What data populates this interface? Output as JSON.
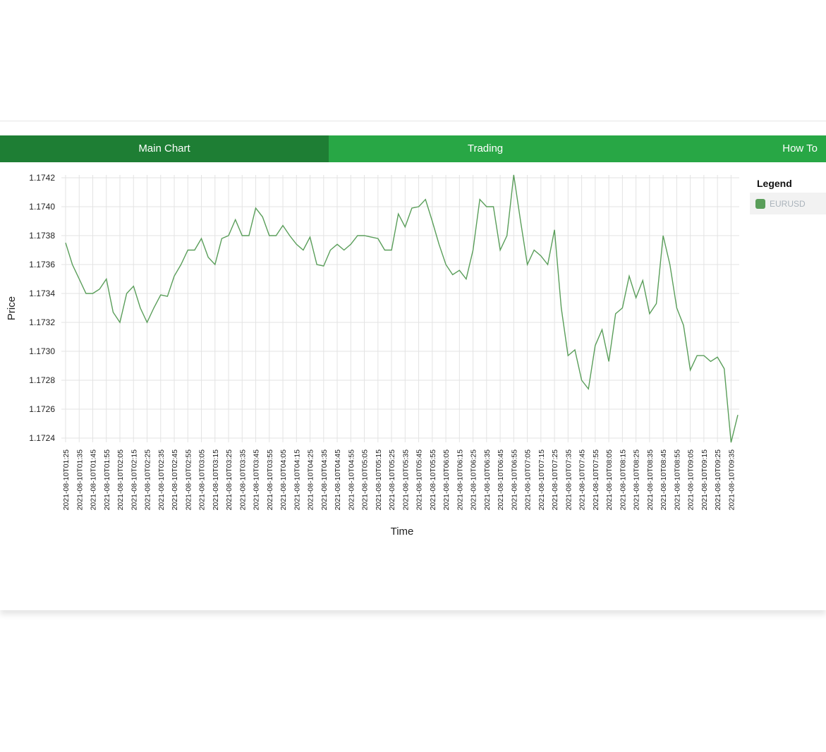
{
  "tabs": [
    {
      "label": "Main Chart",
      "active": true
    },
    {
      "label": "Trading",
      "active": false
    },
    {
      "label": "How To",
      "active": false
    }
  ],
  "legend": {
    "title": "Legend",
    "items": [
      {
        "name": "EURUSD",
        "color": "#5a9e5a"
      }
    ]
  },
  "chart_data": {
    "type": "line",
    "xlabel": "Time",
    "ylabel": "Price",
    "ylim": [
      1.1724,
      1.1742
    ],
    "yticks": [
      "1.1724",
      "1.1726",
      "1.1728",
      "1.1730",
      "1.1732",
      "1.1734",
      "1.1736",
      "1.1738",
      "1.1740",
      "1.1742"
    ],
    "grid": true,
    "legend_position": "right",
    "x": [
      "2021-08-10T01:25",
      "2021-08-10T01:30",
      "2021-08-10T01:35",
      "2021-08-10T01:40",
      "2021-08-10T01:45",
      "2021-08-10T01:50",
      "2021-08-10T01:55",
      "2021-08-10T02:00",
      "2021-08-10T02:05",
      "2021-08-10T02:10",
      "2021-08-10T02:15",
      "2021-08-10T02:20",
      "2021-08-10T02:25",
      "2021-08-10T02:30",
      "2021-08-10T02:35",
      "2021-08-10T02:40",
      "2021-08-10T02:45",
      "2021-08-10T02:50",
      "2021-08-10T02:55",
      "2021-08-10T03:00",
      "2021-08-10T03:05",
      "2021-08-10T03:10",
      "2021-08-10T03:15",
      "2021-08-10T03:20",
      "2021-08-10T03:25",
      "2021-08-10T03:30",
      "2021-08-10T03:35",
      "2021-08-10T03:40",
      "2021-08-10T03:45",
      "2021-08-10T03:50",
      "2021-08-10T03:55",
      "2021-08-10T04:00",
      "2021-08-10T04:05",
      "2021-08-10T04:10",
      "2021-08-10T04:15",
      "2021-08-10T04:20",
      "2021-08-10T04:25",
      "2021-08-10T04:30",
      "2021-08-10T04:35",
      "2021-08-10T04:40",
      "2021-08-10T04:45",
      "2021-08-10T04:50",
      "2021-08-10T04:55",
      "2021-08-10T05:00",
      "2021-08-10T05:05",
      "2021-08-10T05:10",
      "2021-08-10T05:15",
      "2021-08-10T05:20",
      "2021-08-10T05:25",
      "2021-08-10T05:30",
      "2021-08-10T05:35",
      "2021-08-10T05:40",
      "2021-08-10T05:45",
      "2021-08-10T05:50",
      "2021-08-10T05:55",
      "2021-08-10T06:00",
      "2021-08-10T06:05",
      "2021-08-10T06:10",
      "2021-08-10T06:15",
      "2021-08-10T06:20",
      "2021-08-10T06:25",
      "2021-08-10T06:30",
      "2021-08-10T06:35",
      "2021-08-10T06:40",
      "2021-08-10T06:45",
      "2021-08-10T06:50",
      "2021-08-10T06:55",
      "2021-08-10T07:00",
      "2021-08-10T07:05",
      "2021-08-10T07:10",
      "2021-08-10T07:15",
      "2021-08-10T07:20",
      "2021-08-10T07:25",
      "2021-08-10T07:30",
      "2021-08-10T07:35",
      "2021-08-10T07:40",
      "2021-08-10T07:45",
      "2021-08-10T07:50",
      "2021-08-10T07:55",
      "2021-08-10T08:00",
      "2021-08-10T08:05",
      "2021-08-10T08:10",
      "2021-08-10T08:15",
      "2021-08-10T08:20",
      "2021-08-10T08:25",
      "2021-08-10T08:30",
      "2021-08-10T08:35",
      "2021-08-10T08:40",
      "2021-08-10T08:45",
      "2021-08-10T08:50",
      "2021-08-10T08:55",
      "2021-08-10T09:00",
      "2021-08-10T09:05",
      "2021-08-10T09:10",
      "2021-08-10T09:15",
      "2021-08-10T09:20",
      "2021-08-10T09:25",
      "2021-08-10T09:30",
      "2021-08-10T09:35",
      "2021-08-10T09:40"
    ],
    "series": [
      {
        "name": "EURUSD",
        "color": "#5a9e5a",
        "values": [
          1.17375,
          1.1736,
          1.1735,
          1.1734,
          1.1734,
          1.17343,
          1.1735,
          1.17327,
          1.1732,
          1.1734,
          1.17345,
          1.1733,
          1.1732,
          1.1733,
          1.17339,
          1.17338,
          1.17352,
          1.1736,
          1.1737,
          1.1737,
          1.17378,
          1.17365,
          1.1736,
          1.17378,
          1.1738,
          1.17391,
          1.1738,
          1.1738,
          1.17399,
          1.17393,
          1.1738,
          1.1738,
          1.17387,
          1.1738,
          1.17374,
          1.1737,
          1.17379,
          1.1736,
          1.17359,
          1.1737,
          1.17374,
          1.1737,
          1.17374,
          1.1738,
          1.1738,
          1.17379,
          1.17378,
          1.1737,
          1.1737,
          1.17395,
          1.17386,
          1.17399,
          1.174,
          1.17405,
          1.1739,
          1.17374,
          1.1736,
          1.17353,
          1.17356,
          1.1735,
          1.1737,
          1.17405,
          1.174,
          1.174,
          1.1737,
          1.1738,
          1.17422,
          1.1739,
          1.1736,
          1.1737,
          1.17366,
          1.1736,
          1.17384,
          1.1733,
          1.17297,
          1.17301,
          1.1728,
          1.17274,
          1.17304,
          1.17315,
          1.17293,
          1.17326,
          1.1733,
          1.17352,
          1.17337,
          1.17349,
          1.17326,
          1.17333,
          1.1738,
          1.1736,
          1.1733,
          1.17318,
          1.17287,
          1.17297,
          1.17297,
          1.17293,
          1.17296,
          1.17288,
          1.17237,
          1.17256
        ]
      }
    ]
  }
}
